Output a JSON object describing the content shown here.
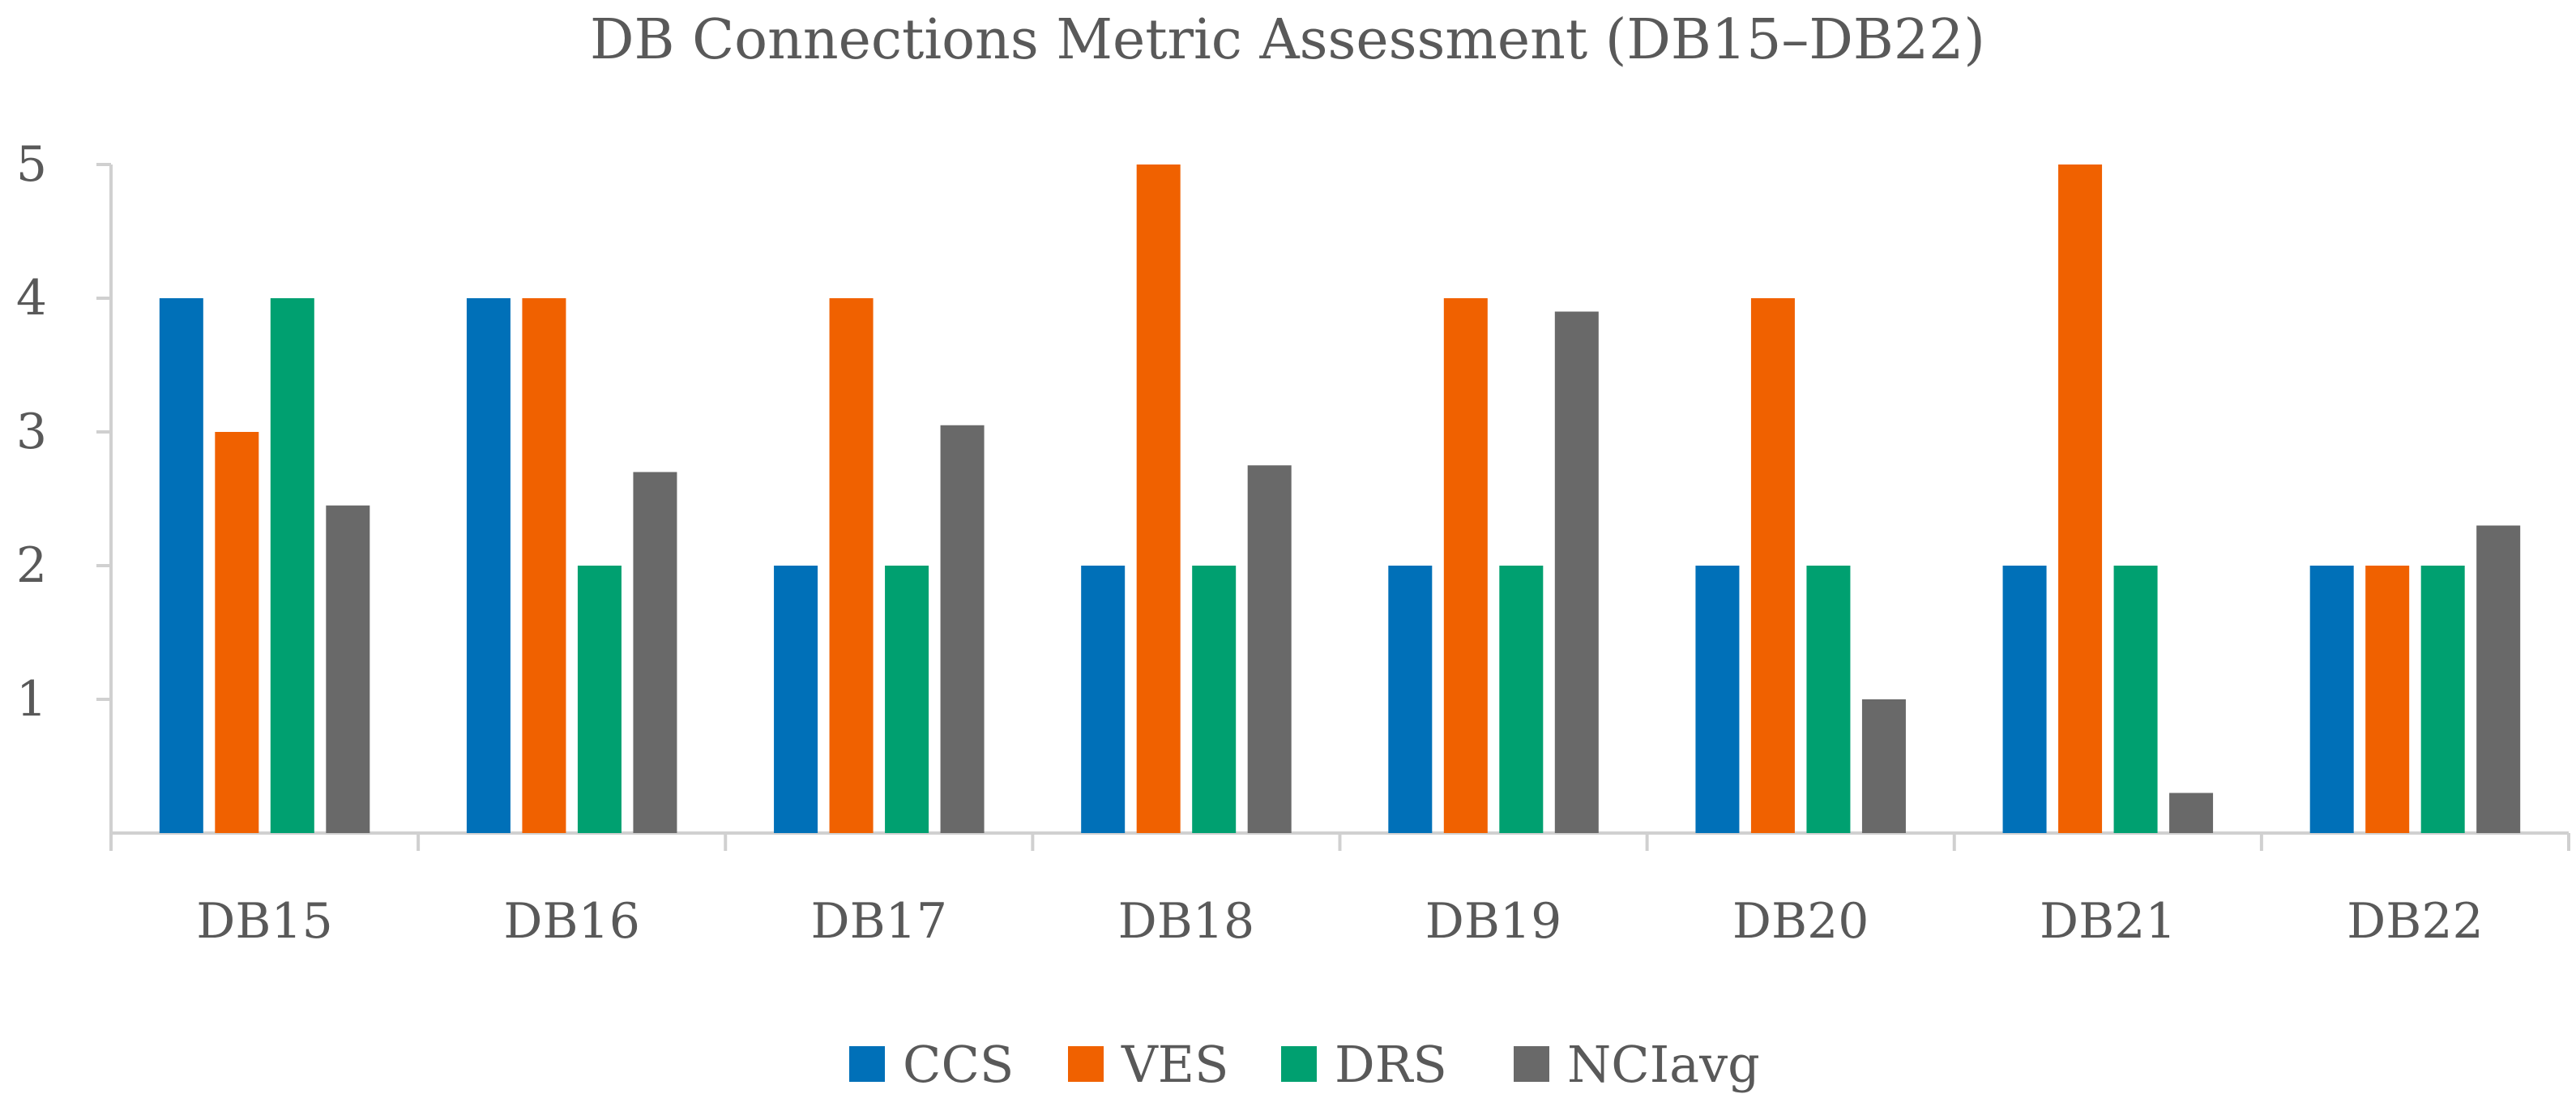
{
  "chart_data": {
    "type": "bar",
    "title": "DB Connections Metric Assessment (DB15–DB22)",
    "xlabel": "",
    "ylabel": "",
    "ylim": [
      0,
      5
    ],
    "yticks": [
      "1",
      "2",
      "3",
      "4",
      "5"
    ],
    "grid": false,
    "legend_position": "bottom",
    "categories": [
      "DB15",
      "DB16",
      "DB17",
      "DB18",
      "DB19",
      "DB20",
      "DB21",
      "DB22"
    ],
    "series": [
      {
        "name": "CCS",
        "color": "#0070b8",
        "values": [
          4,
          4,
          2,
          2,
          2,
          2,
          2,
          2
        ]
      },
      {
        "name": "VES",
        "color": "#f06100",
        "values": [
          3,
          4,
          4,
          5,
          4,
          4,
          5,
          2
        ]
      },
      {
        "name": "DRS",
        "color": "#00a070",
        "values": [
          4,
          2,
          2,
          2,
          2,
          2,
          2,
          2
        ]
      },
      {
        "name": "NCIavg",
        "color": "#696969",
        "values": [
          2.45,
          2.7,
          3.05,
          2.75,
          3.9,
          1.0,
          0.3,
          2.3
        ]
      }
    ]
  }
}
